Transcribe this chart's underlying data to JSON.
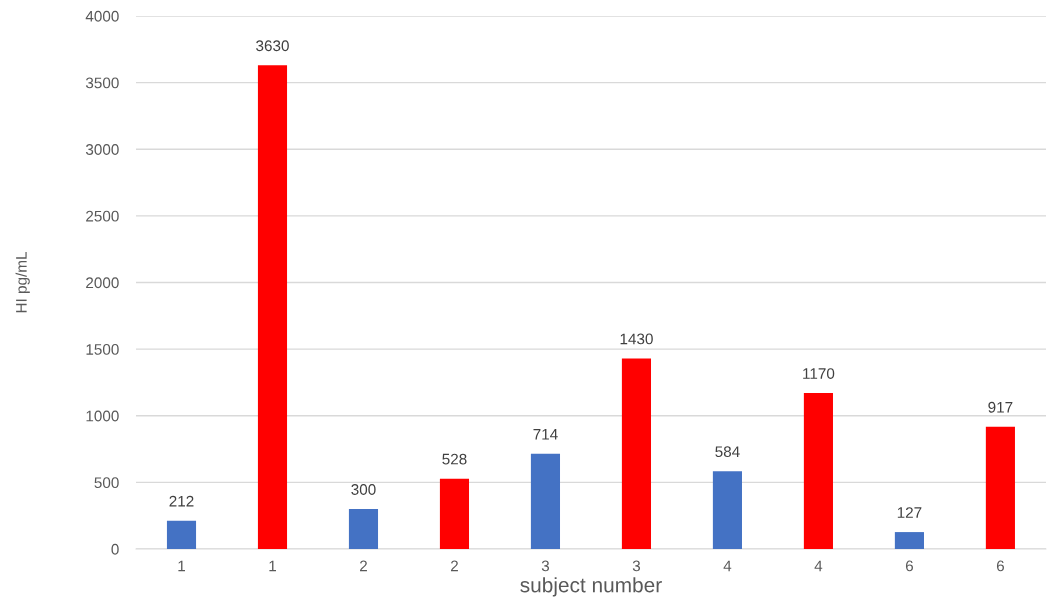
{
  "chart_data": {
    "type": "bar",
    "xlabel": "subject number",
    "ylabel": "HI pg/mL",
    "categories": [
      "1",
      "1",
      "2",
      "2",
      "3",
      "3",
      "4",
      "4",
      "6",
      "6"
    ],
    "values": [
      212,
      3630,
      300,
      528,
      714,
      1430,
      584,
      1170,
      127,
      917
    ],
    "colors": [
      "#4472c4",
      "#ff0000",
      "#4472c4",
      "#ff0000",
      "#4472c4",
      "#ff0000",
      "#4472c4",
      "#ff0000",
      "#4472c4",
      "#ff0000"
    ],
    "ylim": [
      0,
      4000
    ],
    "yticks": [
      0,
      500,
      1000,
      1500,
      2000,
      2500,
      3000,
      3500,
      4000
    ],
    "grid": "y",
    "data_labels": true
  }
}
